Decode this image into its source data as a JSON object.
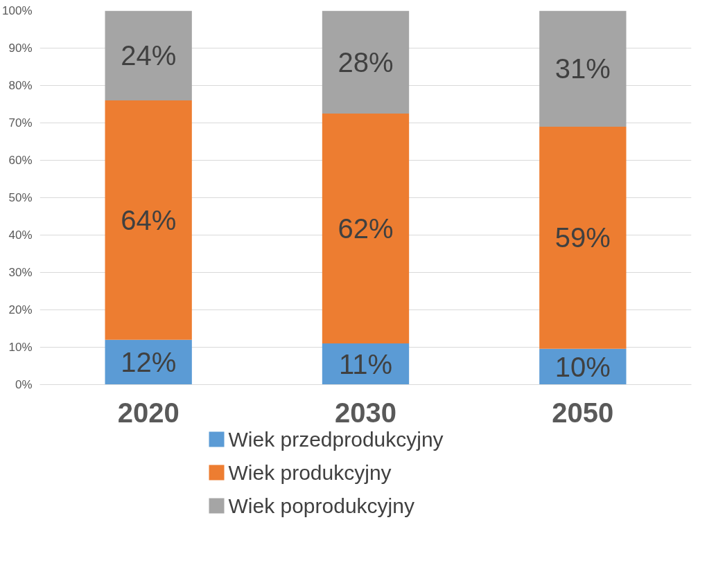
{
  "chart_data": {
    "type": "bar",
    "stacked": true,
    "categories": [
      "2020",
      "2030",
      "2050"
    ],
    "series": [
      {
        "name": "Wiek przedprodukcyjny",
        "color": "#5b9bd5",
        "values": [
          12,
          11,
          9.6
        ],
        "value_labels": [
          "12%",
          "11%",
          "10%"
        ]
      },
      {
        "name": "Wiek produkcyjny",
        "color": "#ed7d31",
        "values": [
          64,
          61.5,
          59.4
        ],
        "value_labels": [
          "64%",
          "62%",
          "59%"
        ]
      },
      {
        "name": "Wiek poprodukcyjny",
        "color": "#a5a5a5",
        "values": [
          24,
          27.5,
          31
        ],
        "value_labels": [
          "24%",
          "28%",
          "31%"
        ]
      }
    ],
    "ylim": [
      0,
      100
    ],
    "yticks": [
      {
        "value": 0,
        "label": "0%"
      },
      {
        "value": 10,
        "label": "10%"
      },
      {
        "value": 20,
        "label": "20%"
      },
      {
        "value": 30,
        "label": "30%"
      },
      {
        "value": 40,
        "label": "40%"
      },
      {
        "value": 50,
        "label": "50%"
      },
      {
        "value": 60,
        "label": "60%"
      },
      {
        "value": 70,
        "label": "70%"
      },
      {
        "value": 80,
        "label": "80%"
      },
      {
        "value": 90,
        "label": "90%"
      },
      {
        "value": 100,
        "label": "100%"
      }
    ],
    "grid": "y",
    "legend": "bottom"
  }
}
